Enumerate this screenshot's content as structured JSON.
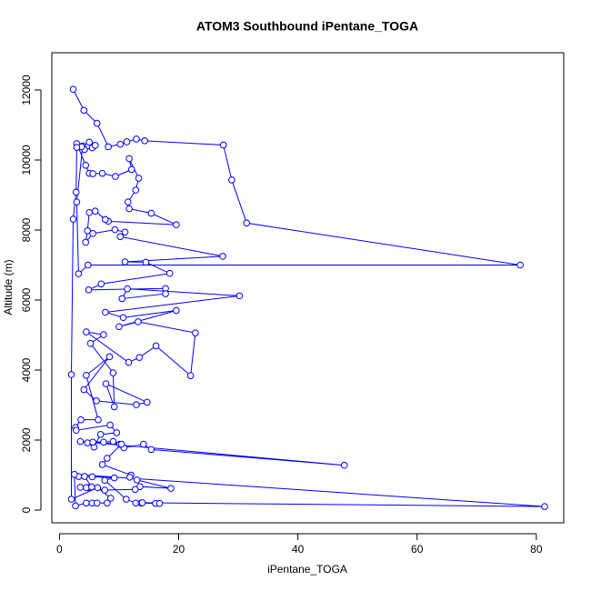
{
  "chart_data": {
    "type": "line",
    "markers": true,
    "title": "ATOM3 Southbound iPentane_TOGA",
    "x_label": "iPentane_TOGA",
    "y_label": "Altitude (m)",
    "color": "#0000ff",
    "xlim": [
      -1.28,
      84.6
    ],
    "ylim": [
      -364,
      13065
    ],
    "xticks": [
      0,
      20,
      40,
      60,
      80
    ],
    "yticks": [
      0,
      2000,
      4000,
      6000,
      8000,
      10000,
      12000
    ],
    "x": [
      2.3,
      4.1,
      6.3,
      8.2,
      10.2,
      11.3,
      12.9,
      14.3,
      27.5,
      28.9,
      31.4,
      77.3,
      4.8,
      3.2,
      2.9,
      3.9,
      4.2,
      5.5,
      6.0,
      5.0,
      3.7,
      2.9,
      4.4,
      5.0,
      5.6,
      7.2,
      9.4,
      12.1,
      11.7,
      13.3,
      12.8,
      11.5,
      11.7,
      15.4,
      19.6,
      8.2,
      7.7,
      6.0,
      5.0,
      4.7,
      4.4,
      5.6,
      9.3,
      11.0,
      10.2,
      27.4,
      11.0,
      14.5,
      18.5,
      7.0,
      4.9,
      17.8,
      17.8,
      10.5,
      11.4,
      30.2,
      7.7,
      10.7,
      19.6,
      10.0,
      13.2,
      22.8,
      22.0,
      16.2,
      13.4,
      11.6,
      4.5,
      7.4,
      5.2,
      9.0,
      9.2,
      7.8,
      14.7,
      12.9,
      6.2,
      4.1,
      8.4,
      4.5,
      6.5,
      3.6,
      2.7,
      2.8,
      8.5,
      9.6,
      6.9,
      5.8,
      4.7,
      5.6,
      10.1,
      10.8,
      14.1,
      15.4,
      47.8,
      3.5,
      7.4,
      9.0,
      10.4,
      8.0,
      7.2,
      12.0,
      11.8,
      13.0,
      18.7,
      13.5,
      12.7,
      7.6,
      5.0,
      3.5,
      4.5,
      5.4,
      4.2,
      3.2,
      5.5,
      9.2,
      7.6,
      11.2,
      12.8,
      13.7,
      16.1,
      16.8,
      13.9,
      81.4,
      2.5,
      2.7,
      4.5,
      5.5,
      6.3,
      8.0,
      8.6,
      6.4,
      2.0,
      2.0,
      2.3,
      2.8,
      2.9
    ],
    "values": [
      12020,
      11420,
      11050,
      10380,
      10450,
      10520,
      10600,
      10550,
      10430,
      9430,
      8200,
      7000,
      7000,
      6750,
      8800,
      10400,
      10300,
      10350,
      10420,
      10510,
      10380,
      10470,
      9850,
      9620,
      9610,
      9620,
      9530,
      9730,
      10040,
      9480,
      9140,
      8800,
      8610,
      8480,
      8150,
      8250,
      8300,
      8540,
      8500,
      7980,
      7650,
      7900,
      8010,
      7940,
      7810,
      7250,
      7090,
      7080,
      6760,
      6460,
      6290,
      6330,
      6180,
      6040,
      6320,
      6120,
      5650,
      5500,
      5700,
      5240,
      5380,
      5060,
      3840,
      4690,
      4360,
      4220,
      5090,
      5010,
      4760,
      3920,
      2950,
      3610,
      3080,
      3010,
      3120,
      3440,
      4380,
      3850,
      2580,
      2580,
      2360,
      2280,
      2430,
      2210,
      2160,
      1800,
      1920,
      1940,
      1880,
      1780,
      1880,
      1730,
      1280,
      1960,
      1940,
      1960,
      1880,
      1480,
      1300,
      1000,
      940,
      860,
      620,
      670,
      590,
      570,
      640,
      650,
      640,
      660,
      960,
      960,
      950,
      920,
      850,
      310,
      200,
      200,
      190,
      190,
      210,
      100,
      1020,
      120,
      200,
      200,
      200,
      200,
      340,
      640,
      310,
      3870,
      8310,
      9080,
      10360
    ]
  }
}
